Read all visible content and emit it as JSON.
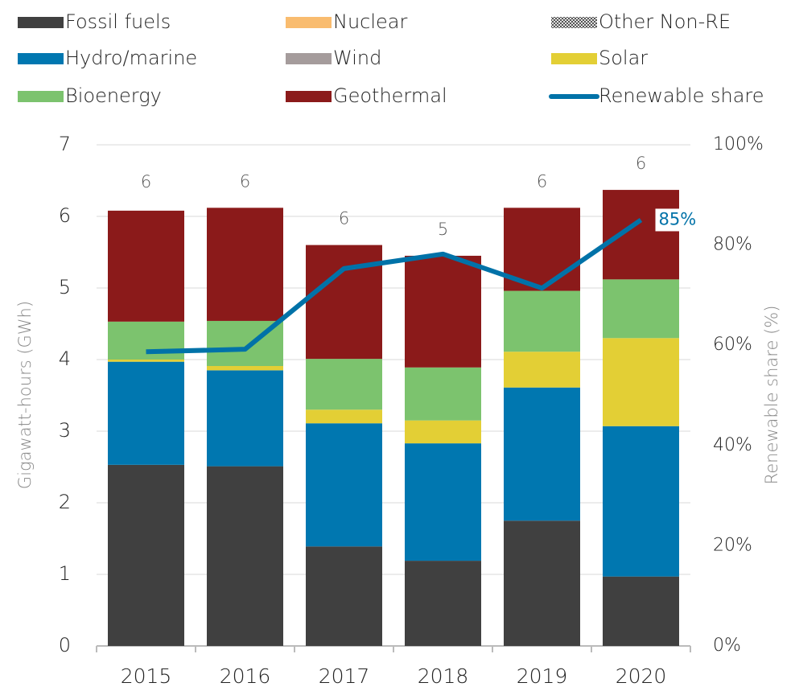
{
  "chart_data": {
    "type": "stacked_bar_line",
    "categories": [
      "2015",
      "2016",
      "2017",
      "2018",
      "2019",
      "2020"
    ],
    "series": [
      {
        "name": "Fossil fuels",
        "color": "#404040",
        "values": [
          2.53,
          2.51,
          1.39,
          1.19,
          1.75,
          0.97
        ]
      },
      {
        "name": "Nuclear",
        "color": "#f9bc6f",
        "values": [
          0,
          0,
          0,
          0,
          0,
          0
        ]
      },
      {
        "name": "Other Non-RE",
        "color": "#7f7f7f",
        "pattern": "dotted",
        "values": [
          0,
          0,
          0,
          0,
          0,
          0
        ]
      },
      {
        "name": "Hydro/marine",
        "color": "#0077b0",
        "values": [
          1.44,
          1.34,
          1.72,
          1.64,
          1.86,
          2.1
        ]
      },
      {
        "name": "Wind",
        "color": "#a59c9c",
        "values": [
          0,
          0,
          0,
          0,
          0,
          0
        ]
      },
      {
        "name": "Solar",
        "color": "#e3cf35",
        "values": [
          0.03,
          0.06,
          0.19,
          0.32,
          0.5,
          1.23
        ]
      },
      {
        "name": "Bioenergy",
        "color": "#7cc36e",
        "values": [
          0.53,
          0.63,
          0.71,
          0.74,
          0.85,
          0.82
        ]
      },
      {
        "name": "Geothermal",
        "color": "#8b1a1a",
        "values": [
          1.55,
          1.58,
          1.59,
          1.56,
          1.16,
          1.25
        ]
      },
      {
        "name": "Renewable share",
        "color": "#0072a8",
        "type": "line",
        "axis": "y2",
        "values": [
          58.7,
          59.2,
          75.3,
          78.2,
          71.4,
          85
        ],
        "value_labels": [
          null,
          null,
          null,
          null,
          null,
          "85%"
        ]
      }
    ],
    "totals": {
      "values": [
        6.11,
        6.12,
        5.6,
        5.45,
        6.12,
        6.37
      ],
      "value_labels": [
        "6",
        "6",
        "6",
        "5",
        "6",
        "6"
      ]
    },
    "ylabel": "Gigawatt-hours (GWh)",
    "y2label": "Renewable share (%)",
    "ylim": [
      0,
      7
    ],
    "yticks": [
      0,
      1,
      2,
      3,
      4,
      5,
      6,
      7
    ],
    "y2lim": [
      0,
      100
    ],
    "y2ticks": [
      {
        "value": 0,
        "label": "0%"
      },
      {
        "value": 20,
        "label": "20%"
      },
      {
        "value": 40,
        "label": "40%"
      },
      {
        "value": 60,
        "label": "60%"
      },
      {
        "value": 80,
        "label": "80%"
      },
      {
        "value": 100,
        "label": "100%"
      }
    ],
    "grid": true
  }
}
